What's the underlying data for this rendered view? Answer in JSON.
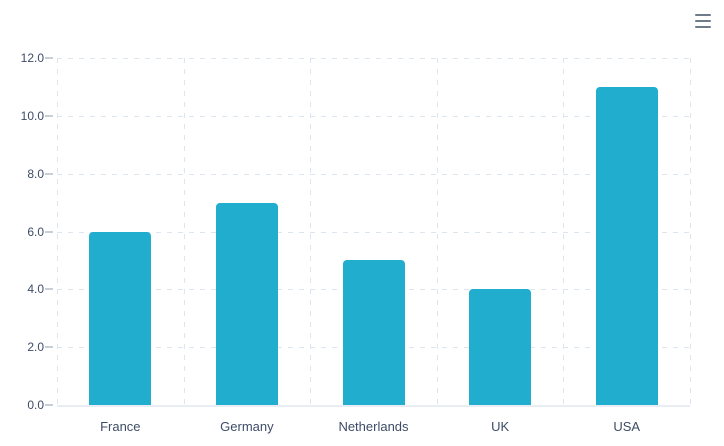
{
  "chart": {
    "background": "#ffffff",
    "menu": {
      "icon": "hamburger-icon",
      "color": "#6e7b8a"
    },
    "colors": {
      "bar": "#21adce",
      "grid": "#dde6ef",
      "axis_line": "#e8edf3",
      "tick": "#c6ced8",
      "label_text": "#3d4c66"
    }
  },
  "chart_data": {
    "type": "bar",
    "categories": [
      "France",
      "Germany",
      "Netherlands",
      "UK",
      "USA"
    ],
    "values": [
      6,
      7,
      5,
      4,
      11
    ],
    "ylim": [
      0,
      12
    ],
    "ytick_step": 2,
    "ytick_labels": [
      "0.0",
      "2.0",
      "4.0",
      "6.0",
      "8.0",
      "10.0",
      "12.0"
    ],
    "grid": "dashed",
    "legend": "none",
    "bar_corner_radius": 4
  }
}
